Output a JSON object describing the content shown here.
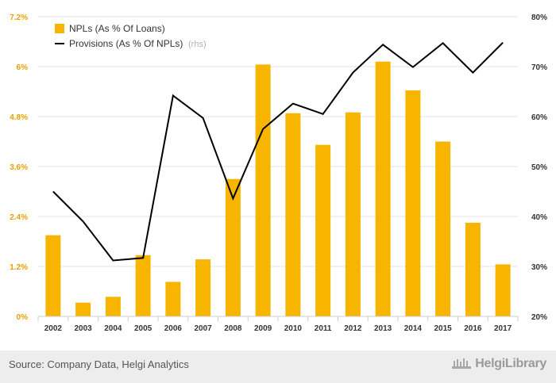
{
  "chart_data": {
    "type": "bar+line",
    "categories": [
      "2002",
      "2003",
      "2004",
      "2005",
      "2006",
      "2007",
      "2008",
      "2009",
      "2010",
      "2011",
      "2012",
      "2013",
      "2014",
      "2015",
      "2016",
      "2017"
    ],
    "series": [
      {
        "name": "NPLs (As % Of Loans)",
        "kind": "bar",
        "axis": "left",
        "color": "#f7b500",
        "values": [
          1.95,
          0.33,
          0.47,
          1.47,
          0.83,
          1.37,
          3.3,
          6.05,
          4.88,
          4.12,
          4.9,
          6.12,
          5.43,
          4.2,
          2.25,
          1.25
        ]
      },
      {
        "name": "Provisions (As % Of NPLs)",
        "kind": "line",
        "axis": "right",
        "color": "#000000",
        "values": [
          45.0,
          39.0,
          31.2,
          31.7,
          64.2,
          59.7,
          43.6,
          57.5,
          62.6,
          60.5,
          68.8,
          74.4,
          69.9,
          74.7,
          68.8,
          74.8
        ]
      }
    ],
    "rhs_tag": "(rhs)",
    "y_left": {
      "min": 0,
      "max": 7.2,
      "ticks": [
        "0%",
        "1.2%",
        "2.4%",
        "3.6%",
        "4.8%",
        "6%",
        "7.2%"
      ]
    },
    "y_right": {
      "min": 20,
      "max": 80,
      "ticks": [
        "20%",
        "30%",
        "40%",
        "50%",
        "60%",
        "70%",
        "80%"
      ]
    },
    "grid": true,
    "legend_position": "top-left"
  },
  "footer": {
    "source": "Source: Company Data, Helgi Analytics",
    "logo_text": "HelgiLibrary",
    "logo_icon": "helgi-library-icon",
    "background": "#ededed"
  }
}
